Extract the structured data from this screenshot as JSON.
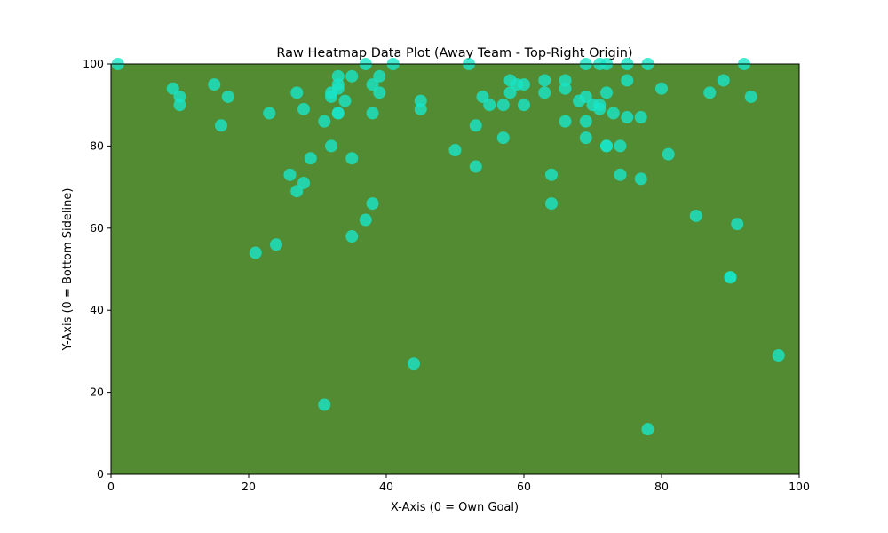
{
  "chart_data": {
    "type": "scatter",
    "title": "Raw Heatmap Data Plot (Away Team - Top-Right Origin)",
    "xlabel": "X-Axis (0 = Own Goal)",
    "ylabel": "Y-Axis (0 = Bottom Sideline)",
    "xlim": [
      0,
      100
    ],
    "ylim": [
      0,
      100
    ],
    "xticks": [
      0,
      20,
      40,
      60,
      80,
      100
    ],
    "yticks": [
      0,
      20,
      40,
      60,
      80,
      100
    ],
    "grid": false,
    "colors": {
      "plot_background": "#528b31",
      "marker": "#19e5c8",
      "marker_alpha": 0.8
    },
    "points": [
      [
        1,
        100
      ],
      [
        9,
        94
      ],
      [
        10,
        92
      ],
      [
        10,
        90
      ],
      [
        15,
        95
      ],
      [
        16,
        85
      ],
      [
        17,
        92
      ],
      [
        21,
        54
      ],
      [
        23,
        88
      ],
      [
        24,
        56
      ],
      [
        26,
        73
      ],
      [
        27,
        93
      ],
      [
        27,
        69
      ],
      [
        28,
        89
      ],
      [
        28,
        71
      ],
      [
        29,
        77
      ],
      [
        31,
        86
      ],
      [
        31,
        17
      ],
      [
        32,
        93
      ],
      [
        32,
        92
      ],
      [
        32,
        80
      ],
      [
        33,
        97
      ],
      [
        33,
        95
      ],
      [
        33,
        94
      ],
      [
        33,
        88
      ],
      [
        33,
        88
      ],
      [
        34,
        91
      ],
      [
        35,
        97
      ],
      [
        35,
        77
      ],
      [
        35,
        58
      ],
      [
        37,
        100
      ],
      [
        37,
        62
      ],
      [
        38,
        95
      ],
      [
        38,
        88
      ],
      [
        38,
        66
      ],
      [
        39,
        97
      ],
      [
        39,
        93
      ],
      [
        41,
        100
      ],
      [
        44,
        27
      ],
      [
        45,
        91
      ],
      [
        45,
        89
      ],
      [
        50,
        79
      ],
      [
        52,
        100
      ],
      [
        53,
        85
      ],
      [
        53,
        75
      ],
      [
        54,
        92
      ],
      [
        55,
        90
      ],
      [
        57,
        90
      ],
      [
        57,
        82
      ],
      [
        58,
        96
      ],
      [
        58,
        93
      ],
      [
        59,
        95
      ],
      [
        60,
        95
      ],
      [
        60,
        90
      ],
      [
        63,
        96
      ],
      [
        63,
        93
      ],
      [
        64,
        73
      ],
      [
        64,
        66
      ],
      [
        66,
        96
      ],
      [
        66,
        94
      ],
      [
        66,
        86
      ],
      [
        68,
        91
      ],
      [
        69,
        100
      ],
      [
        69,
        92
      ],
      [
        69,
        86
      ],
      [
        69,
        82
      ],
      [
        70,
        90
      ],
      [
        71,
        100
      ],
      [
        71,
        90
      ],
      [
        71,
        89
      ],
      [
        72,
        100
      ],
      [
        72,
        93
      ],
      [
        72,
        80
      ],
      [
        72,
        80
      ],
      [
        73,
        88
      ],
      [
        74,
        80
      ],
      [
        74,
        73
      ],
      [
        75,
        100
      ],
      [
        75,
        96
      ],
      [
        75,
        87
      ],
      [
        77,
        87
      ],
      [
        77,
        72
      ],
      [
        78,
        100
      ],
      [
        78,
        11
      ],
      [
        80,
        94
      ],
      [
        81,
        78
      ],
      [
        85,
        63
      ],
      [
        87,
        93
      ],
      [
        89,
        96
      ],
      [
        90,
        48
      ],
      [
        90,
        48
      ],
      [
        91,
        61
      ],
      [
        92,
        100
      ],
      [
        93,
        92
      ],
      [
        97,
        29
      ]
    ]
  }
}
